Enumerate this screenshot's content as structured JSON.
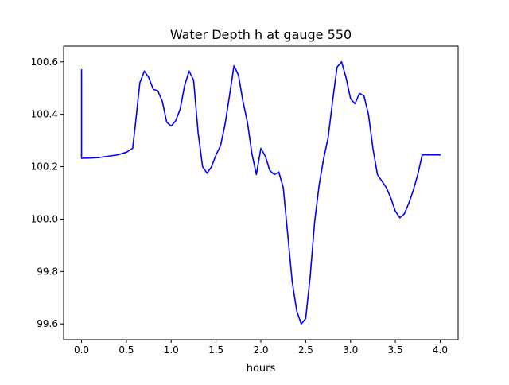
{
  "chart_data": {
    "type": "line",
    "title": "Water Depth h at gauge 550",
    "xlabel": "hours",
    "ylabel": "",
    "xlim": [
      -0.2,
      4.2
    ],
    "ylim": [
      99.54,
      100.66
    ],
    "xticks": [
      0.0,
      0.5,
      1.0,
      1.5,
      2.0,
      2.5,
      3.0,
      3.5,
      4.0
    ],
    "xtick_labels": [
      "0.0",
      "0.5",
      "1.0",
      "1.5",
      "2.0",
      "2.5",
      "3.0",
      "3.5",
      "4.0"
    ],
    "yticks": [
      99.6,
      99.8,
      100.0,
      100.2,
      100.4,
      100.6
    ],
    "ytick_labels": [
      "99.6",
      "99.8",
      "100.0",
      "100.2",
      "100.4",
      "100.6"
    ],
    "grid": false,
    "line_color": "#0000ff",
    "series": [
      {
        "x": [
          0.0,
          0.0,
          0.1,
          0.2,
          0.3,
          0.4,
          0.5,
          0.57,
          0.6,
          0.65,
          0.7,
          0.75,
          0.8,
          0.85,
          0.9,
          0.95,
          1.0,
          1.05,
          1.1,
          1.15,
          1.2,
          1.25,
          1.3,
          1.35,
          1.4,
          1.45,
          1.5,
          1.55,
          1.6,
          1.65,
          1.7,
          1.75,
          1.8,
          1.85,
          1.9,
          1.95,
          2.0,
          2.05,
          2.1,
          2.15,
          2.2,
          2.25,
          2.3,
          2.35,
          2.4,
          2.45,
          2.5,
          2.55,
          2.6,
          2.65,
          2.7,
          2.75,
          2.8,
          2.85,
          2.9,
          2.95,
          3.0,
          3.05,
          3.1,
          3.15,
          3.2,
          3.25,
          3.3,
          3.35,
          3.4,
          3.45,
          3.5,
          3.55,
          3.6,
          3.65,
          3.7,
          3.75,
          3.8,
          3.85,
          3.9,
          3.95,
          4.0
        ],
        "y": [
          100.57,
          100.232,
          100.233,
          100.235,
          100.24,
          100.245,
          100.255,
          100.27,
          100.36,
          100.52,
          100.565,
          100.54,
          100.495,
          100.49,
          100.45,
          100.37,
          100.355,
          100.375,
          100.42,
          100.51,
          100.565,
          100.53,
          100.33,
          100.2,
          100.175,
          100.2,
          100.245,
          100.28,
          100.36,
          100.47,
          100.585,
          100.55,
          100.45,
          100.37,
          100.25,
          100.17,
          100.27,
          100.24,
          100.185,
          100.17,
          100.18,
          100.12,
          99.94,
          99.76,
          99.65,
          99.6,
          99.62,
          99.78,
          99.99,
          100.13,
          100.23,
          100.31,
          100.45,
          100.58,
          100.6,
          100.54,
          100.46,
          100.44,
          100.48,
          100.47,
          100.4,
          100.27,
          100.17,
          100.145,
          100.12,
          100.08,
          100.03,
          100.005,
          100.02,
          100.06,
          100.11,
          100.17,
          100.245,
          100.245,
          100.245,
          100.245,
          100.245
        ]
      }
    ]
  }
}
